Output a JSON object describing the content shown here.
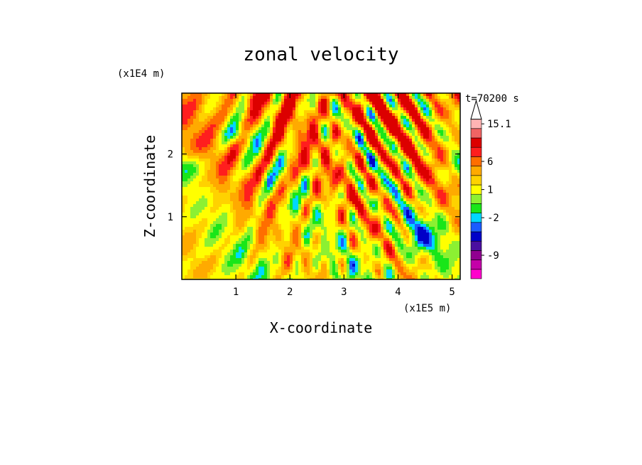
{
  "chart_data": {
    "type": "heatmap",
    "title": "zonal velocity",
    "xlabel": "X-coordinate",
    "ylabel": "Z-coordinate",
    "x_scale_label": "(x1E5 m)",
    "y_scale_label": "(x1E4 m)",
    "time_label": "t=70200 s",
    "xlim": [
      0,
      5.15
    ],
    "ylim": [
      0,
      2.97
    ],
    "x_ticks": [
      1,
      2,
      3,
      4,
      5
    ],
    "x_tick_labels": [
      "1",
      "2",
      "3",
      "4",
      "5"
    ],
    "y_ticks": [
      1,
      2
    ],
    "y_tick_labels": [
      "1",
      "2"
    ],
    "colorbar": {
      "colors": [
        "#ff00cc",
        "#c400a8",
        "#900090",
        "#4a0fa0",
        "#0000c8",
        "#1a5cff",
        "#00d7ff",
        "#19e619",
        "#8cf032",
        "#ffff00",
        "#ffd200",
        "#ffaa00",
        "#ff6e00",
        "#ff1e1e",
        "#dc0000",
        "#f06464",
        "#ffb4b4"
      ],
      "labels": [
        {
          "text": "15.1",
          "index": 16
        },
        {
          "text": "6",
          "index": 12
        },
        {
          "text": "1",
          "index": 9
        },
        {
          "text": "-2",
          "index": 6
        },
        {
          "text": "-9",
          "index": 2
        }
      ]
    }
  }
}
